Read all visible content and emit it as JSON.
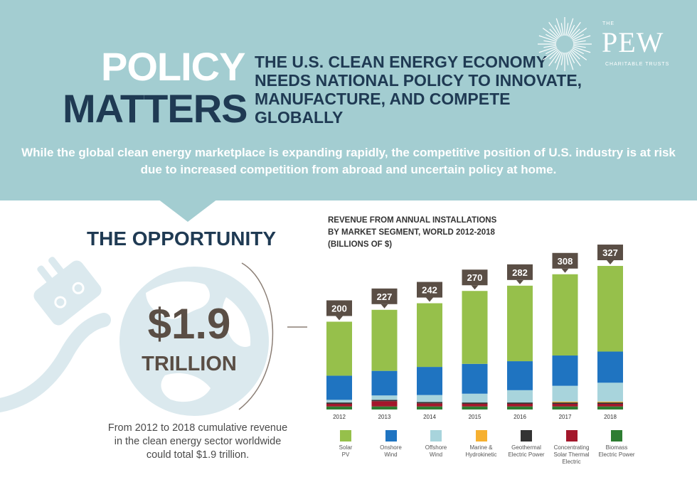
{
  "header": {
    "title_line1": "POLICY",
    "title_line2": "MATTERS",
    "headline": "THE U.S. CLEAN ENERGY ECONOMY NEEDS NATIONAL POLICY TO INNOVATE, MANUFACTURE, AND COMPETE GLOBALLY",
    "subtext": "While the global clean energy marketplace is expanding rapidly, the competitive position of U.S. industry is at risk due to increased competition from abroad and uncertain policy at home."
  },
  "logo": {
    "the": "THE",
    "name": "PEW",
    "sub": "CHARITABLE TRUSTS"
  },
  "opportunity": {
    "title": "THE OPPORTUNITY",
    "value": "$1.9",
    "unit": "TRILLION",
    "caption": "From 2012 to 2018 cumulative revenue in the clean energy sector worldwide could total $1.9 trillion."
  },
  "chart_title": {
    "line1": "REVENUE FROM ANNUAL INSTALLATIONS",
    "line2": "BY MARKET SEGMENT, WORLD 2012-2018",
    "line3": "(BILLIONS OF $)"
  },
  "chart_data": {
    "type": "bar",
    "stacked": true,
    "title": "REVENUE FROM ANNUAL INSTALLATIONS BY MARKET SEGMENT, WORLD 2012-2018 (BILLIONS OF $)",
    "categories": [
      "2012",
      "2013",
      "2014",
      "2015",
      "2016",
      "2017",
      "2018"
    ],
    "totals": [
      200,
      227,
      242,
      270,
      282,
      308,
      327
    ],
    "ylim": [
      0,
      340
    ],
    "grid": false,
    "legend_position": "bottom",
    "series": [
      {
        "name": "Biomass Electric Power",
        "color": "#2e7d32",
        "values": [
          7,
          7,
          7,
          7,
          7,
          7,
          7
        ]
      },
      {
        "name": "Concentrating Solar Thermal Electric",
        "color": "#a3172b",
        "values": [
          6,
          12,
          7,
          6,
          6,
          6,
          6
        ]
      },
      {
        "name": "Geothermal Electric Power",
        "color": "#333333",
        "values": [
          3,
          3,
          3,
          3,
          3,
          3,
          3
        ]
      },
      {
        "name": "Marine & Hydrokinetic",
        "color": "#f6b030",
        "values": [
          0,
          0,
          0,
          0,
          0,
          2,
          2
        ]
      },
      {
        "name": "Offshore Wind",
        "color": "#a8d4dc",
        "values": [
          6,
          10,
          16,
          20,
          28,
          36,
          43
        ]
      },
      {
        "name": "Onshore Wind",
        "color": "#1f74c1",
        "values": [
          55,
          56,
          64,
          68,
          66,
          69,
          71
        ]
      },
      {
        "name": "Solar PV",
        "color": "#96c04b",
        "values": [
          123,
          139,
          145,
          166,
          172,
          185,
          195
        ]
      }
    ],
    "legend_order": [
      "Solar PV",
      "Onshore Wind",
      "Offshore Wind",
      "Marine & Hydrokinetic",
      "Geothermal Electric Power",
      "Concentrating Solar Thermal Electric",
      "Biomass Electric Power"
    ],
    "label_color": "#5a4e45"
  },
  "legend": [
    {
      "line1": "Solar",
      "line2": "PV",
      "line3": "",
      "color": "#96c04b"
    },
    {
      "line1": "Onshore",
      "line2": "Wind",
      "line3": "",
      "color": "#1f74c1"
    },
    {
      "line1": "Offshore",
      "line2": "Wind",
      "line3": "",
      "color": "#a8d4dc"
    },
    {
      "line1": "Marine &",
      "line2": "Hydrokinetic",
      "line3": "",
      "color": "#f6b030"
    },
    {
      "line1": "Geothermal",
      "line2": "Electric Power",
      "line3": "",
      "color": "#333333"
    },
    {
      "line1": "Concentrating",
      "line2": "Solar Thermal",
      "line3": "Electric",
      "color": "#a3172b"
    },
    {
      "line1": "Biomass",
      "line2": "Electric Power",
      "line3": "",
      "color": "#2e7d32"
    }
  ],
  "colors": {
    "banner": "#a3cdd1",
    "navy": "#1f3a53",
    "brown": "#5a4e45",
    "globe": "#dbe9ee"
  }
}
